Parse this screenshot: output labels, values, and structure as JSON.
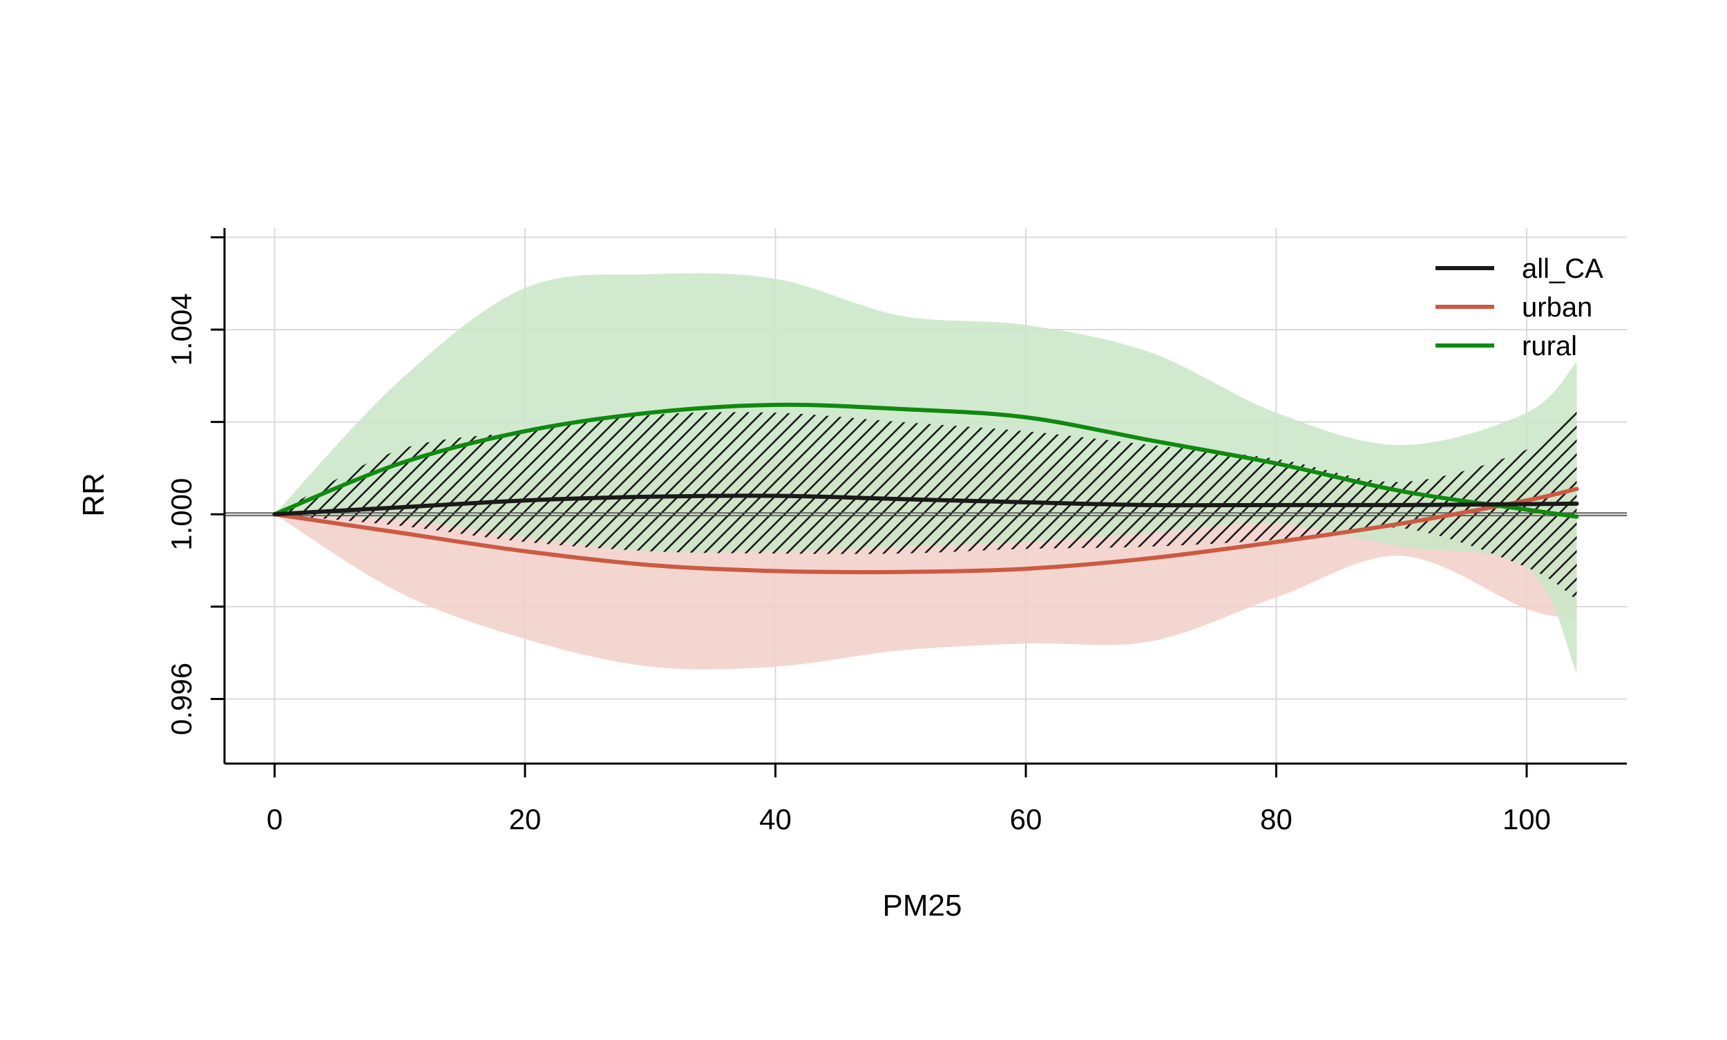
{
  "chart_data": {
    "type": "line",
    "xlabel": "PM25",
    "ylabel": "RR",
    "xlim": [
      -4,
      108
    ],
    "ylim": [
      0.9946,
      1.0062
    ],
    "xticks": [
      0,
      20,
      40,
      60,
      80,
      100
    ],
    "xtick_labels": [
      "0",
      "20",
      "40",
      "60",
      "80",
      "100"
    ],
    "yticks": [
      0.996,
      1.0,
      1.004
    ],
    "ytick_labels": [
      "0.996",
      "1.000",
      "1.004"
    ],
    "ygrid": [
      0.996,
      0.998,
      1.0,
      1.002,
      1.004,
      1.006
    ],
    "grid": true,
    "reference_line": 1.0,
    "legend_position": "top-right",
    "x": [
      0,
      10,
      20,
      30,
      40,
      50,
      60,
      70,
      80,
      90,
      100,
      104
    ],
    "series": [
      {
        "name": "all_CA",
        "color": "#1a1a1a",
        "ci_style": "hatched",
        "values": [
          1.0,
          1.00015,
          1.0003,
          1.00038,
          1.0004,
          1.00033,
          1.00026,
          1.0002,
          1.0002,
          1.0002,
          1.00022,
          1.00023
        ],
        "lower": [
          1.0,
          0.99975,
          0.9994,
          0.9992,
          0.99915,
          0.99915,
          0.99925,
          0.9993,
          0.99945,
          0.9997,
          0.99885,
          0.99815
        ],
        "upper": [
          1.0,
          1.0014,
          1.0018,
          1.00215,
          1.0022,
          1.002,
          1.0018,
          1.0015,
          1.0012,
          1.0007,
          1.0014,
          1.00225
        ]
      },
      {
        "name": "urban",
        "color": "#cc5a42",
        "ci_color": "#f2cfc9",
        "values": [
          1.0,
          0.9996,
          0.9992,
          0.9989,
          0.99877,
          0.99875,
          0.99882,
          0.99905,
          0.9994,
          0.9998,
          1.0003,
          1.00055
        ],
        "lower": [
          1.0,
          0.9983,
          0.9973,
          0.9967,
          0.9967,
          0.99705,
          0.9972,
          0.99725,
          0.9982,
          0.9991,
          0.99795,
          0.99775
        ],
        "upper": [
          1.0,
          1.0004,
          1.0008,
          1.0011,
          1.0012,
          1.0012,
          1.0011,
          1.001,
          1.0009,
          1.0006,
          1.0007,
          1.0008
        ]
      },
      {
        "name": "rural",
        "color": "#0f8a0f",
        "ci_color": "#c9e6c7",
        "values": [
          1.0,
          1.0011,
          1.0018,
          1.0022,
          1.00237,
          1.00228,
          1.0021,
          1.0016,
          1.0011,
          1.0005,
          1.0001,
          0.99995
        ],
        "lower": [
          1.0,
          0.9999,
          0.9995,
          0.9992,
          0.9992,
          0.9993,
          0.9994,
          0.9996,
          0.9998,
          0.9993,
          0.99885,
          0.99655
        ],
        "upper": [
          1.0,
          1.0029,
          1.0049,
          1.0052,
          1.0051,
          1.0043,
          1.0041,
          1.0035,
          1.0022,
          1.0015,
          1.0022,
          1.0033
        ]
      }
    ]
  }
}
